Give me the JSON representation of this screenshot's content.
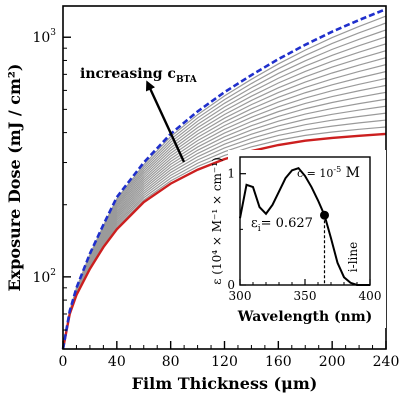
{
  "chart_data": [
    {
      "type": "line",
      "xlabel": "Film Thickness (μm)",
      "ylabel": "Exposure Dose (mJ / cm²)",
      "xlim": [
        0,
        240
      ],
      "ylim": [
        50,
        1350
      ],
      "yscale": "log",
      "x_ticks": [
        "0",
        "40",
        "80",
        "120",
        "160",
        "200",
        "240"
      ],
      "y_ticks": [
        {
          "value": 100,
          "base": "10",
          "exp": "2"
        },
        {
          "value": 1000,
          "base": "10",
          "exp": "3"
        }
      ],
      "x": [
        0,
        5,
        10,
        20,
        30,
        40,
        60,
        80,
        100,
        120,
        140,
        160,
        180,
        200,
        220,
        240
      ],
      "annotation": {
        "text": "increasing c",
        "subscript": "BTA"
      },
      "series": [
        {
          "role": "lower bound",
          "color": "#cc1f1f",
          "style": "solid",
          "values": [
            50,
            70,
            84,
            108,
            133,
            158,
            205,
            245,
            280,
            310,
            335,
            355,
            370,
            380,
            388,
            395
          ]
        },
        {
          "role": "upper bound",
          "color": "#1f2fcc",
          "style": "dashed",
          "values": [
            50,
            72,
            90,
            125,
            165,
            215,
            300,
            395,
            490,
            590,
            695,
            810,
            930,
            1055,
            1180,
            1310
          ]
        },
        {
          "role": "intermediate",
          "color": "#9a9a9a",
          "style": "solid",
          "count": 17
        }
      ],
      "grid": false
    },
    {
      "type": "line",
      "xlabel": "Wavelength (nm)",
      "ylabel": "ε (10⁴ × M⁻¹ × cm⁻¹)",
      "xlim": [
        300,
        400
      ],
      "ylim": [
        0,
        1.15
      ],
      "x_ticks": [
        "300",
        "350",
        "400"
      ],
      "y_ticks": [
        "0",
        "1"
      ],
      "concentration_label": {
        "text": "c = 10",
        "sup": "-5",
        "unit": "M"
      },
      "marker_label": {
        "text": "ε",
        "sub": "i",
        "value": "= 0.627"
      },
      "iline_label": "i-line",
      "marker": {
        "x": 365,
        "y": 0.627
      },
      "x": [
        300,
        305,
        310,
        315,
        320,
        325,
        330,
        335,
        340,
        345,
        350,
        355,
        360,
        365,
        370,
        375,
        380,
        385,
        390,
        395,
        400
      ],
      "values": [
        0.6,
        0.9,
        0.88,
        0.7,
        0.64,
        0.72,
        0.84,
        0.96,
        1.03,
        1.05,
        0.98,
        0.88,
        0.76,
        0.627,
        0.42,
        0.2,
        0.07,
        0.02,
        0.0,
        0.0,
        0.0
      ],
      "color": "#000000",
      "grid": false
    }
  ]
}
